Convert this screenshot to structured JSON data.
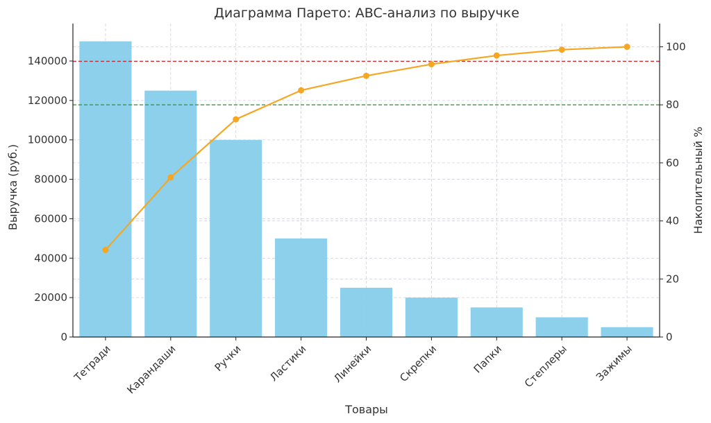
{
  "chart_data": {
    "type": "bar",
    "title": "Диаграмма Парето: ABC-анализ по выручке",
    "xlabel": "Товары",
    "ylabel": "Выручка (руб.)",
    "y2label": "Накопительный %",
    "categories": [
      "Тетради",
      "Карандаши",
      "Ручки",
      "Ластики",
      "Линейки",
      "Скрепки",
      "Папки",
      "Степлеры",
      "Зажимы"
    ],
    "series": [
      {
        "type": "bar",
        "axis": "left",
        "color": "#87CEEB",
        "values": [
          150000,
          125000,
          100000,
          50000,
          25000,
          20000,
          15000,
          10000,
          5000
        ]
      },
      {
        "type": "line",
        "axis": "right",
        "color": "#F5A623",
        "values": [
          30,
          55,
          75,
          85,
          90,
          94,
          97,
          99,
          100
        ]
      }
    ],
    "reference_lines": [
      {
        "axis": "right",
        "value": 95,
        "color": "#D62728",
        "style": "dashed"
      },
      {
        "axis": "right",
        "value": 80,
        "color": "#2CA02C",
        "style": "dashed"
      }
    ],
    "ylim": [
      0,
      159000
    ],
    "y2lim": [
      0,
      108
    ],
    "yticks": [
      0,
      20000,
      40000,
      60000,
      80000,
      100000,
      120000,
      140000
    ],
    "y2ticks": [
      0,
      20,
      40,
      60,
      80,
      100
    ],
    "grid": true,
    "legend": "none"
  }
}
